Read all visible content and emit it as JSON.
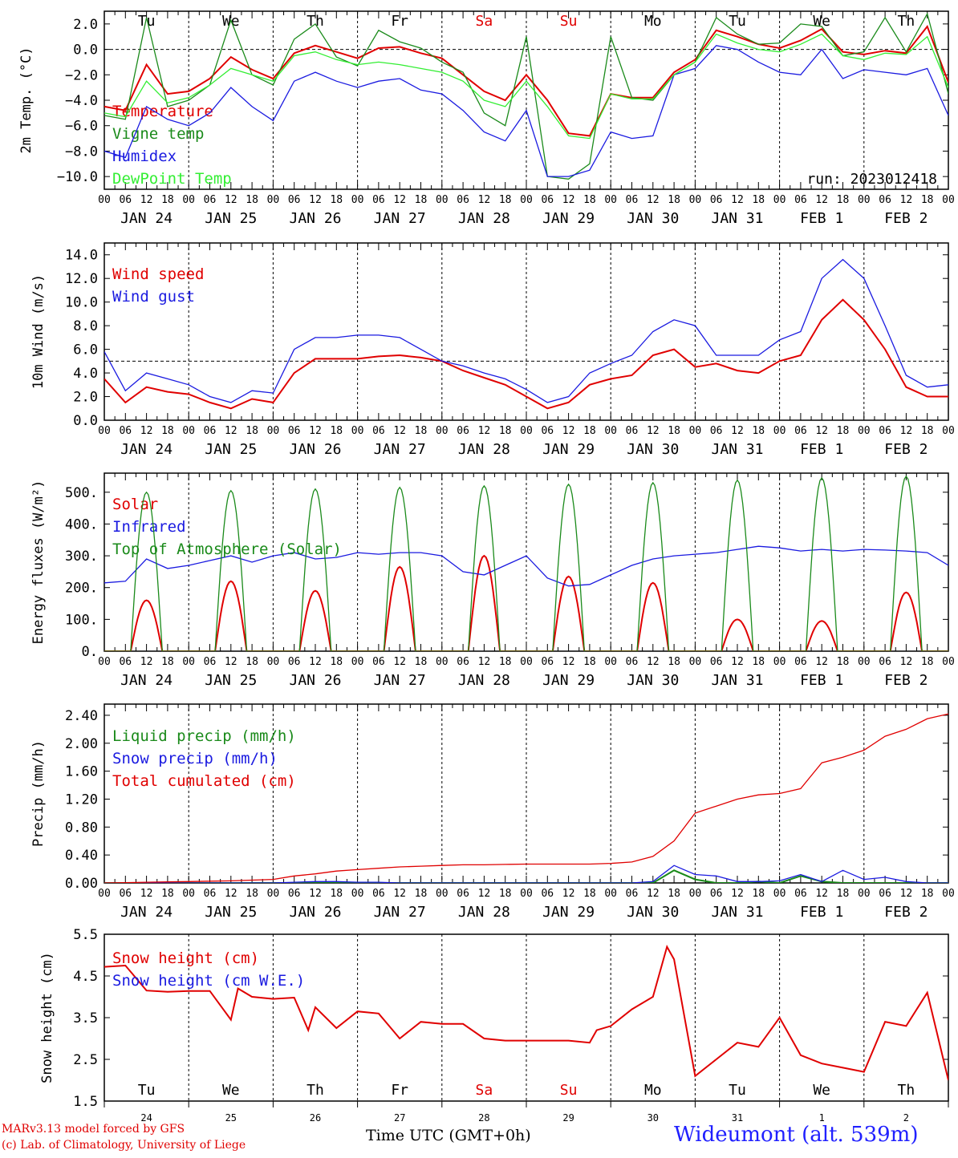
{
  "x_days": [
    "JAN 24",
    "JAN 25",
    "JAN 26",
    "JAN 27",
    "JAN 28",
    "JAN 29",
    "JAN 30",
    "JAN 31",
    "FEB  1",
    "FEB  2"
  ],
  "hour_labels": [
    "00",
    "06",
    "12",
    "18"
  ],
  "weekdays": [
    "Tu",
    "We",
    "Th",
    "Fr",
    "Sa",
    "Su",
    "Mo",
    "Tu",
    "We",
    "Th"
  ],
  "weekend_color": "#e00000",
  "bottom_day_numbers": [
    "24",
    "25",
    "26",
    "27",
    "28",
    "29",
    "30",
    "31",
    "1",
    "2"
  ],
  "x_axis_title": "Time UTC (GMT+0h)",
  "credit_line1": "MARv3.13 model forced by GFS",
  "credit_line2": "(c) Lab. of Climatology, University of Liege",
  "station": "Wideumont (alt. 539m)",
  "colors": {
    "red": "#e00000",
    "green": "#1a8a1a",
    "blue": "#1a1ae0",
    "lightgreen": "#33ee33"
  },
  "chart_data": [
    {
      "type": "line",
      "ylabel": "2m Temp. (°C)",
      "ylim": [
        -11,
        3
      ],
      "yticks": [
        2,
        0,
        -2,
        -4,
        -6,
        -8,
        -10
      ],
      "ytick_labels": [
        "2.0",
        "0.0",
        "−2.0",
        "−4.0",
        "−6.0",
        "−8.0",
        "−10.0"
      ],
      "ref_line": 0,
      "run": "run: 2023012418",
      "x": [
        0,
        6,
        12,
        18,
        24,
        30,
        36,
        42,
        48,
        54,
        60,
        66,
        72,
        78,
        84,
        90,
        96,
        102,
        108,
        114,
        120,
        126,
        132,
        138,
        144,
        150,
        156,
        162,
        168,
        174,
        180,
        186,
        192,
        198,
        204,
        210,
        216,
        222,
        228,
        234,
        240
      ],
      "series": [
        {
          "name": "Temperature",
          "color": "#e00000",
          "values": [
            -4.5,
            -4.8,
            -1.2,
            -3.5,
            -3.3,
            -2.3,
            -0.6,
            -1.6,
            -2.3,
            -0.3,
            0.3,
            -0.2,
            -0.7,
            0.1,
            0.2,
            -0.3,
            -0.7,
            -2.0,
            -3.3,
            -4.0,
            -2.0,
            -4.0,
            -6.6,
            -6.8,
            -3.5,
            -3.8,
            -3.8,
            -1.8,
            -0.8,
            1.5,
            1.0,
            0.4,
            0.1,
            0.7,
            1.6,
            -0.2,
            -0.4,
            -0.1,
            -0.3,
            1.8,
            -2.6
          ]
        },
        {
          "name": "Vigne temp",
          "color": "#1a8a1a",
          "values": [
            -5.2,
            -5.5,
            2.5,
            -4.5,
            -4.0,
            -2.8,
            2.3,
            -2.0,
            -2.8,
            0.8,
            2.0,
            -0.6,
            -1.3,
            1.5,
            0.6,
            0.1,
            -1.0,
            -1.8,
            -5.0,
            -6.0,
            1.0,
            -10.0,
            -10.2,
            -9.0,
            1.0,
            -3.8,
            -4.0,
            -2.0,
            -1.0,
            2.5,
            1.2,
            0.4,
            0.5,
            2.0,
            1.8,
            -0.5,
            -0.2,
            2.5,
            -0.2,
            2.8,
            -3.5
          ]
        },
        {
          "name": "Humidex",
          "color": "#1a1ae0",
          "values": [
            -8.0,
            -8.5,
            -4.5,
            -5.5,
            -6.0,
            -5.0,
            -3.0,
            -4.5,
            -5.6,
            -2.5,
            -1.8,
            -2.5,
            -3.0,
            -2.5,
            -2.3,
            -3.2,
            -3.5,
            -4.8,
            -6.5,
            -7.2,
            -4.8,
            -10.0,
            -10.0,
            -9.5,
            -6.5,
            -7.0,
            -6.8,
            -2.0,
            -1.5,
            0.3,
            0.0,
            -1.0,
            -1.8,
            -2.0,
            0.0,
            -2.3,
            -1.6,
            -1.8,
            -2.0,
            -1.5,
            -5.2
          ]
        },
        {
          "name": "DewPoint Temp",
          "color": "#33ee33",
          "values": [
            -5.0,
            -5.3,
            -2.5,
            -4.2,
            -3.8,
            -2.8,
            -1.5,
            -2.0,
            -2.5,
            -0.5,
            -0.2,
            -0.8,
            -1.2,
            -1.0,
            -1.2,
            -1.5,
            -1.8,
            -2.5,
            -4.0,
            -4.5,
            -2.5,
            -4.5,
            -6.8,
            -7.0,
            -3.5,
            -3.9,
            -3.9,
            -2.0,
            -1.0,
            1.2,
            0.5,
            0.0,
            -0.2,
            0.4,
            1.2,
            -0.5,
            -0.8,
            -0.3,
            -0.4,
            1.0,
            -3.0
          ]
        }
      ]
    },
    {
      "type": "line",
      "ylabel": "10m Wind (m/s)",
      "ylim": [
        0,
        15
      ],
      "yticks": [
        0,
        2,
        4,
        6,
        8,
        10,
        12,
        14
      ],
      "ytick_labels": [
        "0.0",
        "2.0",
        "4.0",
        "6.0",
        "8.0",
        "10.0",
        "12.0",
        "14.0"
      ],
      "ref_line": 5,
      "x": [
        0,
        6,
        12,
        18,
        24,
        30,
        36,
        42,
        48,
        54,
        60,
        66,
        72,
        78,
        84,
        90,
        96,
        102,
        108,
        114,
        120,
        126,
        132,
        138,
        144,
        150,
        156,
        162,
        168,
        174,
        180,
        186,
        192,
        198,
        204,
        210,
        216,
        222,
        228,
        234,
        240
      ],
      "series": [
        {
          "name": "Wind speed",
          "color": "#e00000",
          "values": [
            3.5,
            1.5,
            2.8,
            2.4,
            2.2,
            1.5,
            1.0,
            1.8,
            1.5,
            4.0,
            5.2,
            5.2,
            5.2,
            5.4,
            5.5,
            5.3,
            5.0,
            4.2,
            3.6,
            3.0,
            2.0,
            1.0,
            1.5,
            3.0,
            3.5,
            3.8,
            5.5,
            6.0,
            4.5,
            4.8,
            4.2,
            4.0,
            5.0,
            5.5,
            8.5,
            10.2,
            8.5,
            6.0,
            2.8,
            2.0,
            2.0
          ]
        },
        {
          "name": "Wind gust",
          "color": "#1a1ae0",
          "values": [
            5.8,
            2.5,
            4.0,
            3.5,
            3.0,
            2.0,
            1.5,
            2.5,
            2.3,
            6.0,
            7.0,
            7.0,
            7.2,
            7.2,
            7.0,
            6.0,
            5.0,
            4.6,
            4.0,
            3.5,
            2.6,
            1.5,
            2.0,
            4.0,
            4.8,
            5.5,
            7.5,
            8.5,
            8.0,
            5.5,
            5.5,
            5.5,
            6.8,
            7.5,
            12.0,
            13.6,
            12.0,
            8.0,
            3.8,
            2.8,
            3.0
          ]
        }
      ]
    },
    {
      "type": "line",
      "ylabel": "Energy fluxes (W/m²)",
      "ylim": [
        0,
        560
      ],
      "yticks": [
        0,
        100,
        200,
        300,
        400,
        500
      ],
      "ytick_labels": [
        "0.",
        "100.",
        "200.",
        "300.",
        "400.",
        "500."
      ],
      "x": [
        0,
        6,
        12,
        18,
        24,
        30,
        36,
        42,
        48,
        54,
        60,
        66,
        72,
        78,
        84,
        90,
        96,
        102,
        108,
        114,
        120,
        126,
        132,
        138,
        144,
        150,
        156,
        162,
        168,
        174,
        180,
        186,
        192,
        198,
        204,
        210,
        216,
        222,
        228,
        234,
        240
      ],
      "peaks": {
        "solar": [
          160,
          220,
          190,
          265,
          300,
          235,
          215,
          100,
          95,
          185
        ],
        "toa": [
          500,
          505,
          510,
          515,
          520,
          525,
          530,
          538,
          545,
          550
        ]
      },
      "series": [
        {
          "name": "Solar",
          "color": "#e00000"
        },
        {
          "name": "Infrared",
          "color": "#1a1ae0",
          "values": [
            215,
            220,
            290,
            260,
            270,
            285,
            300,
            280,
            300,
            310,
            290,
            295,
            310,
            305,
            310,
            310,
            300,
            250,
            240,
            270,
            300,
            230,
            205,
            210,
            240,
            270,
            290,
            300,
            305,
            310,
            320,
            330,
            325,
            315,
            320,
            315,
            320,
            318,
            315,
            310,
            270
          ]
        },
        {
          "name": "Top of Atmosphere (Solar)",
          "color": "#1a8a1a"
        }
      ]
    },
    {
      "type": "line",
      "ylabel": "Precip (mm/h)",
      "ylim": [
        0,
        2.56
      ],
      "yticks": [
        0,
        0.4,
        0.8,
        1.2,
        1.6,
        2.0,
        2.4
      ],
      "ytick_labels": [
        "0.00",
        "0.40",
        "0.80",
        "1.20",
        "1.60",
        "2.00",
        "2.40"
      ],
      "x": [
        0,
        6,
        12,
        18,
        24,
        30,
        36,
        42,
        48,
        54,
        60,
        66,
        72,
        78,
        84,
        90,
        96,
        102,
        108,
        114,
        120,
        126,
        132,
        138,
        144,
        150,
        156,
        162,
        168,
        174,
        180,
        186,
        192,
        198,
        204,
        210,
        216,
        222,
        228,
        234,
        240
      ],
      "series": [
        {
          "name": "Liquid precip (mm/h)",
          "color": "#1a8a1a",
          "values": [
            0,
            0,
            0,
            0,
            0,
            0,
            0,
            0,
            0,
            0,
            0,
            0,
            0,
            0,
            0,
            0,
            0,
            0,
            0,
            0,
            0,
            0,
            0,
            0,
            0,
            0,
            0,
            0.18,
            0.05,
            0,
            0,
            0.02,
            0,
            0.1,
            0.02,
            0,
            0,
            0,
            0,
            0,
            0
          ]
        },
        {
          "name": "Snow precip (mm/h)",
          "color": "#1a1ae0",
          "values": [
            0,
            0,
            0,
            0,
            0,
            0,
            0,
            0,
            0,
            0.01,
            0.02,
            0.02,
            0.01,
            0.01,
            0,
            0,
            0,
            0,
            0,
            0,
            0,
            0,
            0,
            0,
            0,
            0,
            0.02,
            0.25,
            0.12,
            0.1,
            0.02,
            0.02,
            0.03,
            0.12,
            0.02,
            0.18,
            0.05,
            0.08,
            0.02,
            0,
            0
          ]
        },
        {
          "name": "Total cumulated (cm)",
          "color": "#e00000",
          "values": [
            0,
            0.005,
            0.01,
            0.015,
            0.02,
            0.025,
            0.03,
            0.04,
            0.05,
            0.1,
            0.13,
            0.17,
            0.19,
            0.21,
            0.23,
            0.24,
            0.25,
            0.26,
            0.26,
            0.265,
            0.27,
            0.27,
            0.27,
            0.27,
            0.28,
            0.3,
            0.38,
            0.6,
            1.0,
            1.1,
            1.2,
            1.26,
            1.28,
            1.35,
            1.72,
            1.8,
            1.9,
            2.1,
            2.2,
            2.35,
            2.42
          ]
        }
      ]
    },
    {
      "type": "line",
      "ylabel": "Snow height (cm)",
      "ylim": [
        1.5,
        5.5
      ],
      "yticks": [
        1.5,
        2.5,
        3.5,
        4.5,
        5.5
      ],
      "ytick_labels": [
        "1.5",
        "2.5",
        "3.5",
        "4.5",
        "5.5"
      ],
      "x": [
        0,
        6,
        12,
        18,
        24,
        30,
        36,
        38,
        42,
        48,
        54,
        58,
        60,
        66,
        72,
        78,
        84,
        90,
        96,
        102,
        108,
        114,
        120,
        126,
        132,
        138,
        140,
        144,
        150,
        156,
        160,
        162,
        168,
        174,
        180,
        186,
        192,
        198,
        204,
        210,
        216,
        222,
        228,
        234,
        240
      ],
      "series": [
        {
          "name": "Snow height (cm)",
          "color": "#e00000",
          "values": [
            4.72,
            4.75,
            4.15,
            4.12,
            4.14,
            4.14,
            3.45,
            4.2,
            4.0,
            3.95,
            3.98,
            3.2,
            3.75,
            3.25,
            3.65,
            3.6,
            3.0,
            3.4,
            3.35,
            3.35,
            3.0,
            2.95,
            2.95,
            2.95,
            2.95,
            2.9,
            3.2,
            3.3,
            3.7,
            4.0,
            5.2,
            4.9,
            2.1,
            2.5,
            2.9,
            2.8,
            3.5,
            2.6,
            2.4,
            2.3,
            2.2,
            3.4,
            3.3,
            4.1,
            2.0
          ]
        },
        {
          "name": "Snow height (cm W.E.)",
          "color": "#1a1ae0"
        }
      ]
    }
  ]
}
